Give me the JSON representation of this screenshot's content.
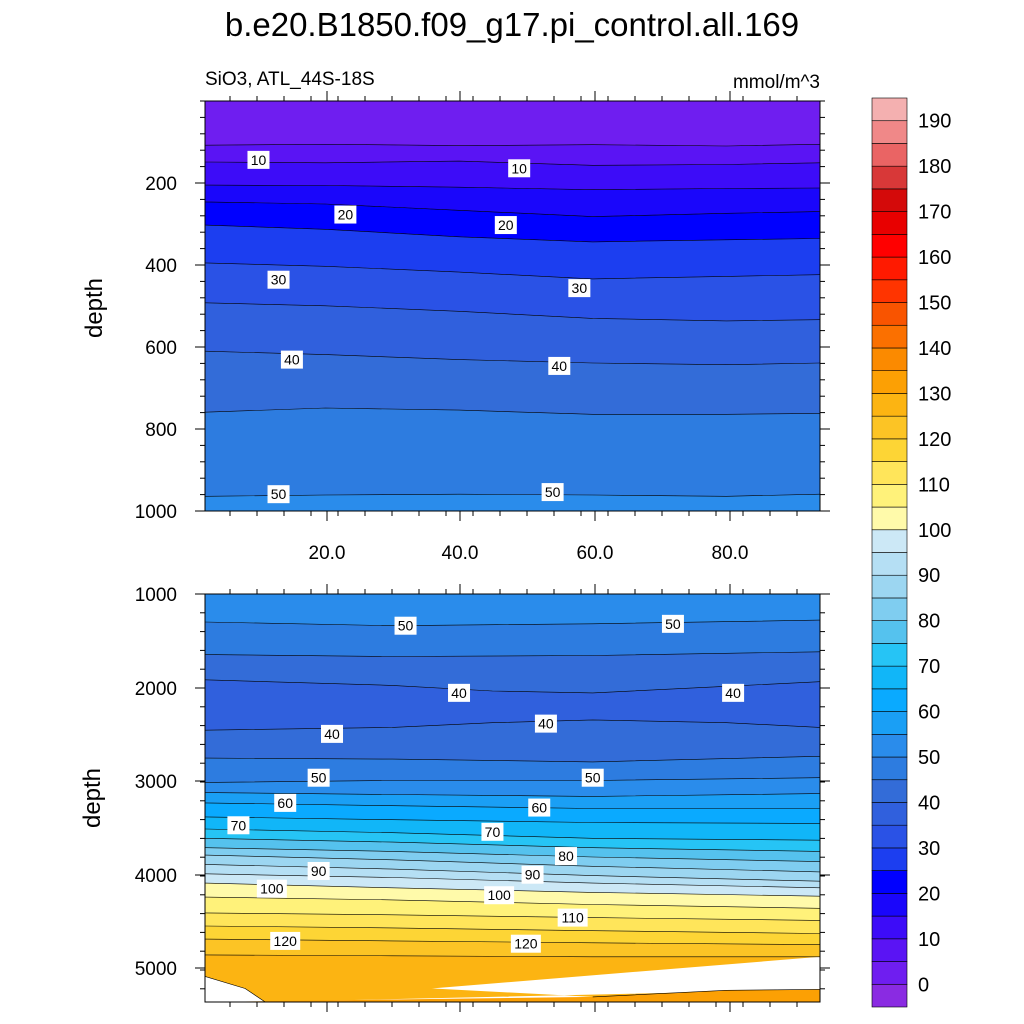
{
  "chart_data": {
    "type": "contour",
    "title": "b.e20.B1850.f09_g17.pi_control.all.169",
    "colorbar": {
      "labels": [
        "0",
        "10",
        "20",
        "30",
        "40",
        "50",
        "60",
        "70",
        "80",
        "90",
        "100",
        "110",
        "120",
        "130",
        "140",
        "150",
        "160",
        "170",
        "180",
        "190"
      ],
      "levels": [
        -5,
        0,
        5,
        10,
        15,
        20,
        25,
        30,
        35,
        40,
        45,
        50,
        55,
        60,
        65,
        70,
        75,
        80,
        85,
        90,
        95,
        100,
        105,
        110,
        115,
        120,
        125,
        130,
        135,
        140,
        145,
        150,
        155,
        160,
        165,
        170,
        175,
        180,
        185,
        190,
        195
      ],
      "colors": [
        "#8a2be2",
        "#6f1ef0",
        "#5a14f4",
        "#3d0cf8",
        "#1a06fb",
        "#0000ff",
        "#1c3ef0",
        "#2a52e6",
        "#3060dd",
        "#336cd8",
        "#2d7ce0",
        "#2a8ceb",
        "#1a9ff5",
        "#0aaaff",
        "#11b6f8",
        "#26c4f5",
        "#55c2ee",
        "#7fcdf0",
        "#9cd6f1",
        "#b5dff4",
        "#cce8f6",
        "#fffaaa",
        "#fff27a",
        "#ffe55a",
        "#fdd535",
        "#fcc425",
        "#fcb412",
        "#fca004",
        "#fb8a00",
        "#fb7000",
        "#f95400",
        "#ff3400",
        "#ff1a00",
        "#ff0000",
        "#e80000",
        "#d40a0a",
        "#d83838",
        "#ea6464",
        "#f08888",
        "#f4b0b0"
      ]
    },
    "panels": [
      {
        "subtitle_left": "SiO3, ATL_44S-18S",
        "subtitle_right": "mmol/m^3",
        "ylabel": "depth",
        "xlim": [
          2,
          94
        ],
        "ylim": [
          1000,
          25
        ],
        "x_ticks": [
          "20.0",
          "40.0",
          "60.0",
          "80.0"
        ],
        "y_ticks": [
          "200",
          "400",
          "600",
          "800",
          "1000"
        ],
        "isolines": [
          {
            "v": 5,
            "d": [
              [
                2,
                130
              ],
              [
                20,
                128
              ],
              [
                40,
                131
              ],
              [
                60,
                129
              ],
              [
                80,
                132
              ],
              [
                94,
                128
              ]
            ]
          },
          {
            "v": 10,
            "d": [
              [
                2,
                170
              ],
              [
                20,
                172
              ],
              [
                40,
                168
              ],
              [
                60,
                178
              ],
              [
                80,
                176
              ],
              [
                94,
                172
              ]
            ]
          },
          {
            "v": 15,
            "d": [
              [
                2,
                225
              ],
              [
                20,
                226
              ],
              [
                40,
                230
              ],
              [
                60,
                236
              ],
              [
                80,
                233
              ],
              [
                94,
                232
              ]
            ]
          },
          {
            "v": 20,
            "d": [
              [
                2,
                265
              ],
              [
                20,
                270
              ],
              [
                40,
                285
              ],
              [
                60,
                300
              ],
              [
                80,
                292
              ],
              [
                94,
                288
              ]
            ]
          },
          {
            "v": 25,
            "d": [
              [
                2,
                320
              ],
              [
                20,
                330
              ],
              [
                40,
                348
              ],
              [
                60,
                360
              ],
              [
                80,
                355
              ],
              [
                94,
                352
              ]
            ]
          },
          {
            "v": 30,
            "d": [
              [
                2,
                410
              ],
              [
                20,
                418
              ],
              [
                40,
                432
              ],
              [
                60,
                448
              ],
              [
                80,
                442
              ],
              [
                94,
                438
              ]
            ]
          },
          {
            "v": 35,
            "d": [
              [
                2,
                505
              ],
              [
                20,
                512
              ],
              [
                40,
                525
              ],
              [
                60,
                542
              ],
              [
                80,
                548
              ],
              [
                94,
                545
              ]
            ]
          },
          {
            "v": 40,
            "d": [
              [
                2,
                620
              ],
              [
                20,
                628
              ],
              [
                40,
                640
              ],
              [
                60,
                648
              ],
              [
                80,
                652
              ],
              [
                94,
                648
              ]
            ]
          },
          {
            "v": 45,
            "d": [
              [
                2,
                765
              ],
              [
                20,
                755
              ],
              [
                40,
                760
              ],
              [
                60,
                770
              ],
              [
                80,
                770
              ],
              [
                94,
                768
              ]
            ]
          },
          {
            "v": 50,
            "d": [
              [
                2,
                965
              ],
              [
                20,
                962
              ],
              [
                40,
                960
              ],
              [
                60,
                962
              ],
              [
                80,
                965
              ],
              [
                94,
                960
              ]
            ]
          }
        ],
        "contour_labels": [
          {
            "text": "10",
            "x": 10,
            "y": 165
          },
          {
            "text": "10",
            "x": 49,
            "y": 185
          },
          {
            "text": "20",
            "x": 23,
            "y": 295
          },
          {
            "text": "20",
            "x": 47,
            "y": 320
          },
          {
            "text": "30",
            "x": 13,
            "y": 450
          },
          {
            "text": "30",
            "x": 58,
            "y": 470
          },
          {
            "text": "40",
            "x": 15,
            "y": 640
          },
          {
            "text": "40",
            "x": 55,
            "y": 655
          },
          {
            "text": "50",
            "x": 13,
            "y": 960
          },
          {
            "text": "50",
            "x": 54,
            "y": 955
          }
        ]
      },
      {
        "ylabel": "depth",
        "xlim": [
          2,
          94
        ],
        "ylim": [
          5375,
          1000
        ],
        "x_ticks": [],
        "y_ticks": [
          "1000",
          "2000",
          "3000",
          "4000",
          "5000"
        ],
        "isolines": [
          {
            "v": 50,
            "d": [
              [
                2,
                1300
              ],
              [
                30,
                1340
              ],
              [
                60,
                1320
              ],
              [
                94,
                1280
              ]
            ]
          },
          {
            "v": 45,
            "d": [
              [
                2,
                1650
              ],
              [
                30,
                1670
              ],
              [
                60,
                1660
              ],
              [
                94,
                1620
              ]
            ]
          },
          {
            "v": 40,
            "d": [
              [
                2,
                1920
              ],
              [
                30,
                1980
              ],
              [
                45,
                2040
              ],
              [
                60,
                2060
              ],
              [
                80,
                1990
              ],
              [
                94,
                1940
              ]
            ]
          },
          {
            "v": 40,
            "d": [
              [
                2,
                2460
              ],
              [
                30,
                2430
              ],
              [
                45,
                2380
              ],
              [
                60,
                2350
              ],
              [
                80,
                2380
              ],
              [
                94,
                2430
              ]
            ]
          },
          {
            "v": 45,
            "d": [
              [
                2,
                2760
              ],
              [
                30,
                2770
              ],
              [
                60,
                2800
              ],
              [
                94,
                2740
              ]
            ]
          },
          {
            "v": 50,
            "d": [
              [
                2,
                3020
              ],
              [
                30,
                3000
              ],
              [
                60,
                3000
              ],
              [
                94,
                2970
              ]
            ]
          },
          {
            "v": 55,
            "d": [
              [
                2,
                3130
              ],
              [
                30,
                3150
              ],
              [
                60,
                3170
              ],
              [
                94,
                3140
              ]
            ]
          },
          {
            "v": 60,
            "d": [
              [
                2,
                3240
              ],
              [
                30,
                3270
              ],
              [
                60,
                3300
              ],
              [
                94,
                3300
              ]
            ]
          },
          {
            "v": 65,
            "d": [
              [
                2,
                3390
              ],
              [
                30,
                3420
              ],
              [
                60,
                3450
              ],
              [
                94,
                3460
              ]
            ]
          },
          {
            "v": 70,
            "d": [
              [
                2,
                3520
              ],
              [
                30,
                3560
              ],
              [
                60,
                3620
              ],
              [
                94,
                3640
              ]
            ]
          },
          {
            "v": 75,
            "d": [
              [
                2,
                3620
              ],
              [
                30,
                3660
              ],
              [
                60,
                3720
              ],
              [
                94,
                3760
              ]
            ]
          },
          {
            "v": 80,
            "d": [
              [
                2,
                3720
              ],
              [
                30,
                3760
              ],
              [
                60,
                3820
              ],
              [
                94,
                3870
              ]
            ]
          },
          {
            "v": 85,
            "d": [
              [
                2,
                3800
              ],
              [
                30,
                3850
              ],
              [
                60,
                3920
              ],
              [
                94,
                3980
              ]
            ]
          },
          {
            "v": 90,
            "d": [
              [
                2,
                3900
              ],
              [
                30,
                3950
              ],
              [
                60,
                4020
              ],
              [
                94,
                4080
              ]
            ]
          },
          {
            "v": 95,
            "d": [
              [
                2,
                4000
              ],
              [
                30,
                4040
              ],
              [
                60,
                4100
              ],
              [
                94,
                4150
              ]
            ]
          },
          {
            "v": 100,
            "d": [
              [
                2,
                4100
              ],
              [
                30,
                4150
              ],
              [
                60,
                4200
              ],
              [
                94,
                4240
              ]
            ]
          },
          {
            "v": 105,
            "d": [
              [
                2,
                4250
              ],
              [
                30,
                4280
              ],
              [
                60,
                4330
              ],
              [
                94,
                4370
              ]
            ]
          },
          {
            "v": 110,
            "d": [
              [
                2,
                4420
              ],
              [
                30,
                4440
              ],
              [
                60,
                4470
              ],
              [
                94,
                4500
              ]
            ]
          },
          {
            "v": 115,
            "d": [
              [
                2,
                4560
              ],
              [
                30,
                4580
              ],
              [
                60,
                4610
              ],
              [
                94,
                4640
              ]
            ]
          },
          {
            "v": 120,
            "d": [
              [
                2,
                4700
              ],
              [
                30,
                4720
              ],
              [
                60,
                4740
              ],
              [
                94,
                4760
              ]
            ]
          },
          {
            "v": 125,
            "d": [
              [
                2,
                4870
              ],
              [
                30,
                4880
              ],
              [
                60,
                4890
              ],
              [
                94,
                4890
              ]
            ]
          },
          {
            "v": 130,
            "d": [
              [
                2,
                5100
              ],
              [
                8,
                5230
              ],
              [
                11,
                5375
              ]
            ]
          },
          {
            "v": 130,
            "d": [
              [
                60,
                5320
              ],
              [
                80,
                5250
              ],
              [
                94,
                5240
              ]
            ]
          }
        ],
        "contour_labels": [
          {
            "text": "50",
            "x": 32,
            "y": 1340
          },
          {
            "text": "50",
            "x": 72,
            "y": 1320
          },
          {
            "text": "40",
            "x": 40,
            "y": 2060
          },
          {
            "text": "40",
            "x": 81,
            "y": 2060
          },
          {
            "text": "40",
            "x": 21,
            "y": 2500
          },
          {
            "text": "40",
            "x": 53,
            "y": 2390
          },
          {
            "text": "50",
            "x": 19,
            "y": 2970
          },
          {
            "text": "50",
            "x": 60,
            "y": 2970
          },
          {
            "text": "60",
            "x": 14,
            "y": 3240
          },
          {
            "text": "60",
            "x": 52,
            "y": 3290
          },
          {
            "text": "70",
            "x": 7,
            "y": 3480
          },
          {
            "text": "70",
            "x": 45,
            "y": 3550
          },
          {
            "text": "80",
            "x": 56,
            "y": 3810
          },
          {
            "text": "90",
            "x": 19,
            "y": 3970
          },
          {
            "text": "90",
            "x": 51,
            "y": 4010
          },
          {
            "text": "100",
            "x": 12,
            "y": 4160
          },
          {
            "text": "100",
            "x": 46,
            "y": 4230
          },
          {
            "text": "110",
            "x": 57,
            "y": 4470
          },
          {
            "text": "120",
            "x": 14,
            "y": 4720
          },
          {
            "text": "120",
            "x": 50,
            "y": 4750
          }
        ]
      }
    ]
  }
}
